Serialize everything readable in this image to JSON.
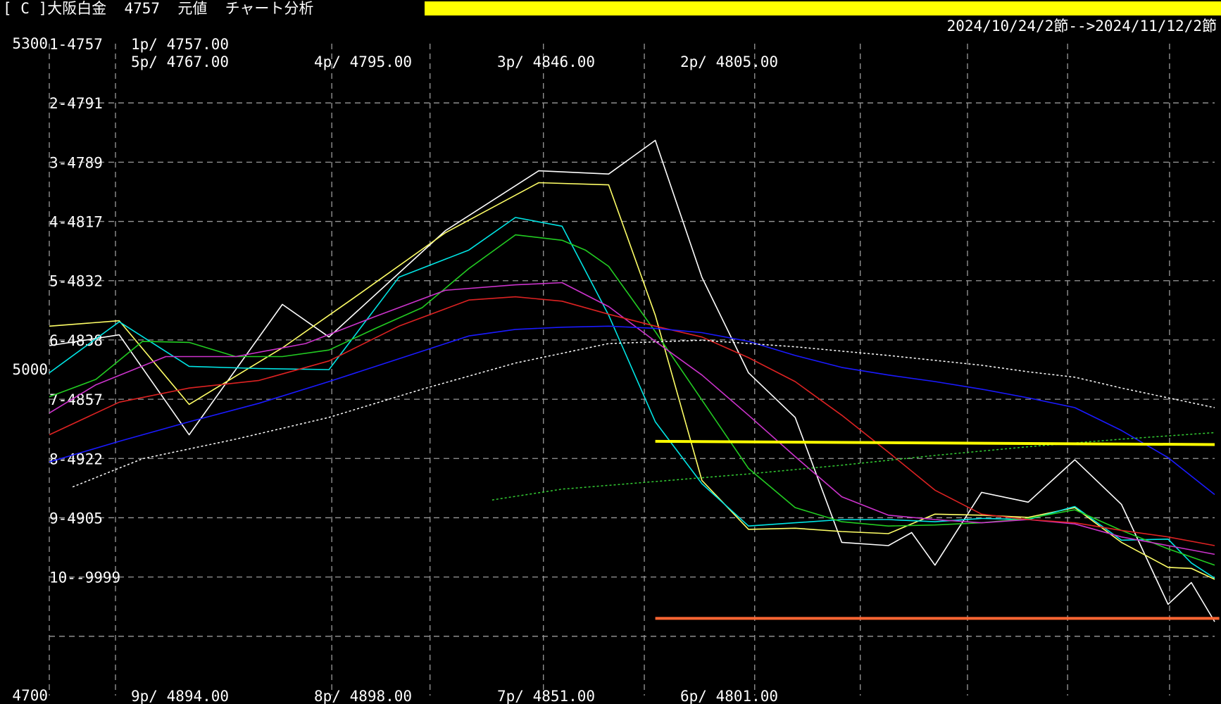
{
  "header": {
    "title": "[ C ]大阪白金  4757  元値  チャート分析",
    "date_range": "2024/10/24/2節-->2024/11/12/2節",
    "bar_color": "#ffff00"
  },
  "chart_data": {
    "type": "line",
    "ylim": [
      4700,
      5300
    ],
    "y_tick_labels": [
      "5300",
      "5000",
      "4700"
    ],
    "grid": "dashed",
    "num_points": 51,
    "row_labels": [
      "1-4757",
      "2-4791",
      "3-4789",
      "4-4817",
      "5-4832",
      "6-4838",
      "7-4857",
      "8-4922",
      "9-4905",
      "10--9999"
    ],
    "annotations_top": [
      {
        "line1": "1p/ 4757.00",
        "line2": "5p/ 4767.00"
      },
      {
        "line1": "4p/ 4795.00"
      },
      {
        "line1": "3p/ 4846.00"
      },
      {
        "line1": "2p/ 4805.00"
      }
    ],
    "annotations_bottom": [
      "9p/ 4894.00",
      "8p/ 4898.00",
      "7p/ 4851.00",
      "6p/ 4801.00"
    ],
    "series": [
      {
        "color": "#ffffff",
        "style": "solid",
        "x": [
          0,
          3,
          6,
          10,
          12,
          17,
          21,
          24,
          26,
          28,
          30,
          32,
          34,
          36,
          37,
          38,
          40,
          42,
          44,
          46,
          48,
          49,
          50
        ],
        "values": [
          5022,
          5032,
          4940,
          5060,
          5030,
          5128,
          5183,
          5180,
          5211,
          5085,
          4997,
          4956,
          4841,
          4838,
          4850,
          4820,
          4887,
          4878,
          4917,
          4876,
          4784,
          4804,
          4768
        ]
      },
      {
        "color": "#ffff66",
        "style": "solid",
        "x": [
          0,
          3,
          6,
          10,
          13,
          17,
          21,
          24,
          26,
          28,
          30,
          32,
          34,
          36,
          38,
          40,
          42,
          44,
          46,
          48,
          49,
          50
        ],
        "values": [
          5040,
          5045,
          4968,
          5020,
          5065,
          5126,
          5172,
          5170,
          5050,
          4898,
          4853,
          4854,
          4851,
          4849,
          4867,
          4866,
          4864,
          4873,
          4841,
          4818,
          4817,
          4807
        ]
      },
      {
        "color": "#00e5e5",
        "style": "solid",
        "x": [
          0,
          3,
          6,
          9,
          12,
          15,
          18,
          20,
          22,
          24,
          26,
          28,
          30,
          32,
          34,
          36,
          38,
          40,
          42,
          44,
          46,
          48,
          49,
          50
        ],
        "values": [
          4997,
          5044,
          5003,
          5001,
          5000,
          5085,
          5110,
          5140,
          5132,
          5050,
          4952,
          4895,
          4856,
          4859,
          4862,
          4862,
          4860,
          4863,
          4862,
          4874,
          4843,
          4844,
          4822,
          4808
        ]
      },
      {
        "color": "#22cc22",
        "style": "solid",
        "x": [
          0,
          2,
          4,
          6,
          8,
          10,
          12,
          14,
          16,
          18,
          20,
          22,
          23,
          24,
          26,
          28,
          30,
          32,
          34,
          36,
          38,
          40,
          42,
          44,
          46,
          48,
          50
        ],
        "values": [
          4975,
          4991,
          5026,
          5025,
          5012,
          5012,
          5018,
          5038,
          5057,
          5093,
          5124,
          5119,
          5110,
          5095,
          5035,
          4972,
          4909,
          4873,
          4860,
          4856,
          4857,
          4859,
          4863,
          4871,
          4852,
          4835,
          4820
        ]
      },
      {
        "color": "#cc33cc",
        "style": "solid",
        "x": [
          0,
          2,
          5,
          8,
          11,
          14,
          17,
          20,
          22,
          24,
          26,
          28,
          30,
          32,
          34,
          36,
          38,
          40,
          42,
          44,
          46,
          48,
          50
        ],
        "values": [
          4960,
          4986,
          5012,
          5012,
          5024,
          5049,
          5073,
          5078,
          5080,
          5058,
          5026,
          4995,
          4958,
          4920,
          4883,
          4866,
          4862,
          4859,
          4862,
          4858,
          4846,
          4838,
          4830
        ]
      },
      {
        "color": "#dd2222",
        "style": "solid",
        "x": [
          0,
          3,
          6,
          9,
          12,
          15,
          18,
          20,
          22,
          24,
          26,
          28,
          30,
          32,
          34,
          36,
          38,
          40,
          42,
          44,
          46,
          48,
          50
        ],
        "values": [
          4940,
          4970,
          4983,
          4990,
          5008,
          5040,
          5064,
          5067,
          5063,
          5051,
          5040,
          5030,
          5011,
          4989,
          4958,
          4924,
          4889,
          4867,
          4862,
          4859,
          4852,
          4846,
          4838
        ]
      },
      {
        "color": "#1a1aff",
        "style": "solid",
        "x": [
          0,
          3,
          6,
          9,
          12,
          15,
          18,
          20,
          22,
          24,
          26,
          28,
          30,
          32,
          34,
          36,
          38,
          40,
          42,
          44,
          46,
          48,
          50
        ],
        "values": [
          4915,
          4934,
          4952,
          4969,
          4989,
          5010,
          5031,
          5037,
          5039,
          5040,
          5038,
          5034,
          5026,
          5013,
          5002,
          4995,
          4989,
          4982,
          4974,
          4965,
          4944,
          4919,
          4885
        ]
      },
      {
        "color": "#ffffff",
        "style": "dotted",
        "x": [
          1,
          4,
          8,
          12,
          16,
          20,
          24,
          28,
          32,
          36,
          40,
          42,
          44,
          46,
          48,
          50
        ],
        "values": [
          4892,
          4918,
          4936,
          4956,
          4982,
          5006,
          5024,
          5027,
          5021,
          5013,
          5004,
          4998,
          4993,
          4983,
          4974,
          4965
        ]
      },
      {
        "color": "#33cc33",
        "style": "dotted",
        "x": [
          19,
          22,
          26,
          30,
          34,
          38,
          42,
          46,
          50
        ],
        "values": [
          4880,
          4890,
          4897,
          4904,
          4912,
          4921,
          4929,
          4936,
          4942
        ]
      }
    ],
    "hlines": [
      {
        "color": "#ffff00",
        "x_start": 26,
        "x_end": 50,
        "value_start": 4934,
        "value_end": 4931
      },
      {
        "color": "#ff6633",
        "x_start": 26,
        "x_end": 50.2,
        "value_start": 4771,
        "value_end": 4771
      }
    ]
  }
}
